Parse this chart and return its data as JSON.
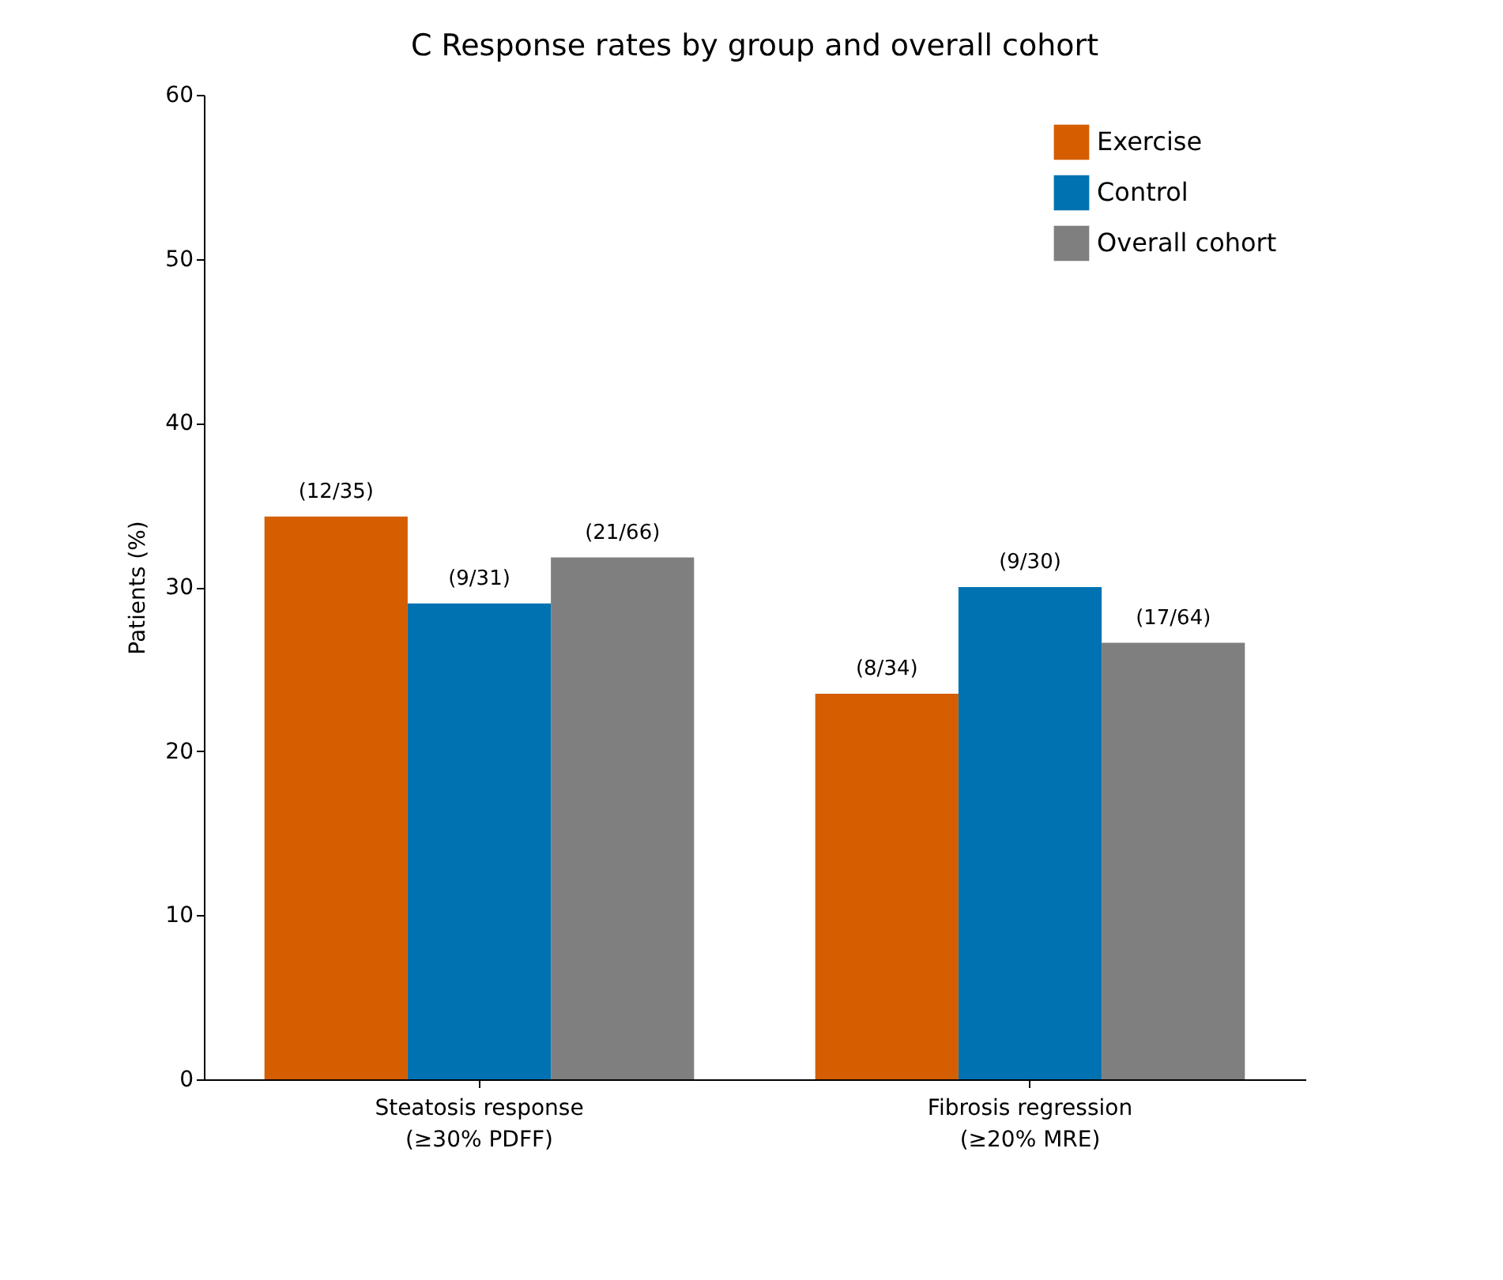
{
  "chart_data": {
    "type": "bar",
    "title": "C  Response rates by group and overall cohort",
    "ylabel": "Patients (%)",
    "categories": [
      "Steatosis response\n(≥30% PDFF)",
      "Fibrosis regression\n(≥20% MRE)"
    ],
    "series": [
      {
        "name": "Exercise",
        "color": "#d55e00",
        "values": [
          34.3,
          23.5
        ],
        "value_labels": [
          "(12/35)",
          "(8/34)"
        ]
      },
      {
        "name": "Control",
        "color": "#0072b2",
        "values": [
          29.0,
          30.0
        ],
        "value_labels": [
          "(9/31)",
          "(9/30)"
        ]
      },
      {
        "name": "Overall cohort",
        "color": "#7f7f7f",
        "values": [
          31.8,
          26.6
        ],
        "value_labels": [
          "(21/66)",
          "(17/64)"
        ]
      }
    ],
    "ylim": [
      0,
      60
    ],
    "yticks": [
      0,
      10,
      20,
      30,
      40,
      50,
      60
    ],
    "grid": false,
    "legend": "top right"
  }
}
